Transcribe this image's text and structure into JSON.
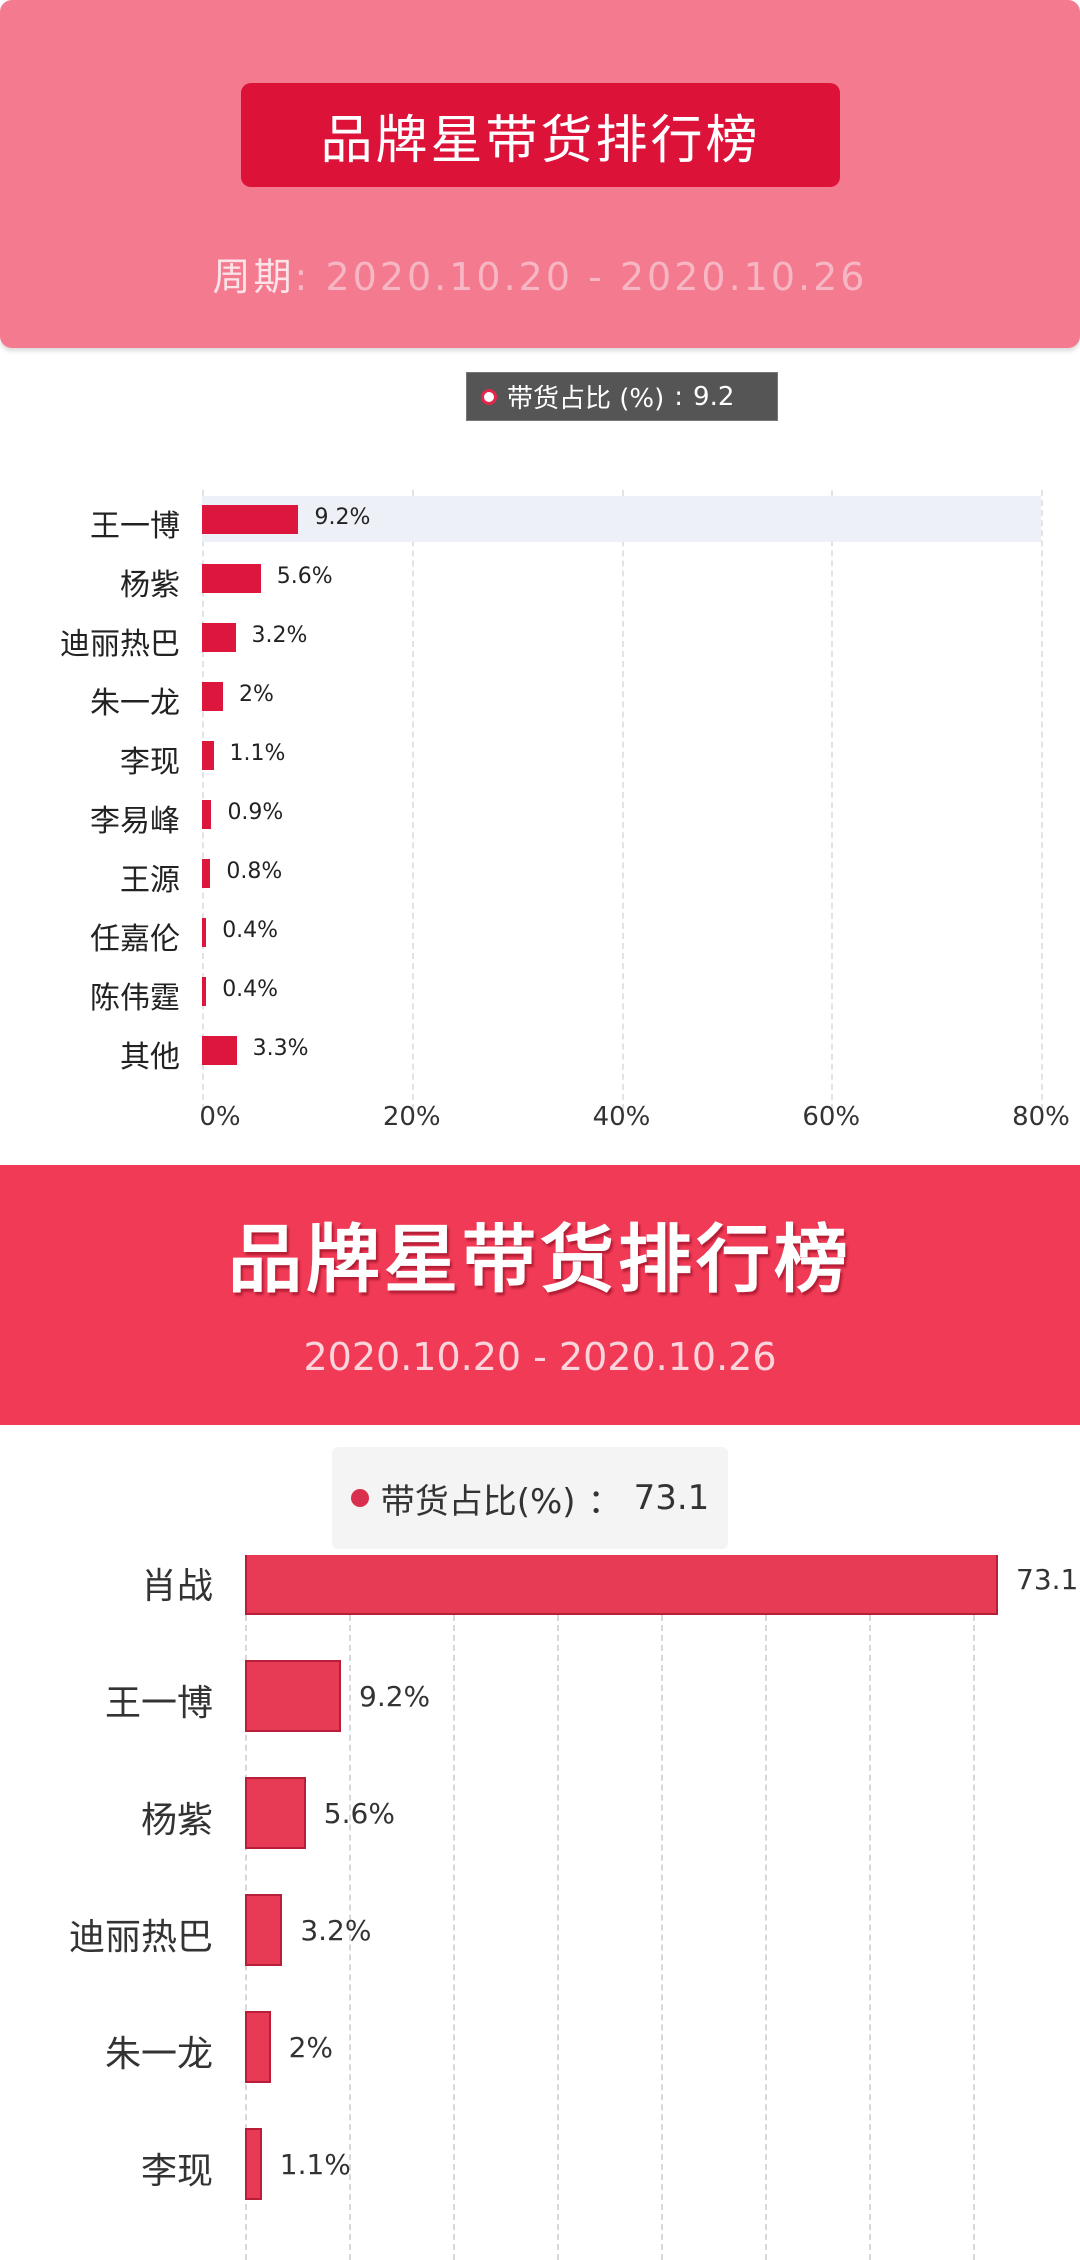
{
  "colors": {
    "header_pink": "#f47a8f",
    "title_red": "#dc1239",
    "bar": "#dc163c",
    "header2_red": "#f03a56"
  },
  "chart_data": [
    {
      "type": "bar",
      "orientation": "horizontal",
      "title": "品牌星带货排行榜",
      "period_label": "周期",
      "period_sep": ": ",
      "period_value": "2020.10.20 - 2020.10.26",
      "tooltip": {
        "series": "带货占比 (%)",
        "sep": " : ",
        "value": "9.2"
      },
      "categories": [
        "王一博",
        "杨紫",
        "迪丽热巴",
        "朱一龙",
        "李现",
        "李易峰",
        "王源",
        "任嘉伦",
        "陈伟霆",
        "其他"
      ],
      "values": [
        9.2,
        5.6,
        3.2,
        2,
        1.1,
        0.9,
        0.8,
        0.4,
        0.4,
        3.3
      ],
      "value_labels": [
        "9.2%",
        "5.6%",
        "3.2%",
        "2%",
        "1.1%",
        "0.9%",
        "0.8%",
        "0.4%",
        "0.4%",
        "3.3%"
      ],
      "xlim": [
        0,
        80
      ],
      "xticks": [
        "0%",
        "20%",
        "40%",
        "60%",
        "80%"
      ],
      "highlighted": "王一博",
      "grid": true
    },
    {
      "type": "bar",
      "orientation": "horizontal",
      "title": "品牌星带货排行榜",
      "period_value": "2020.10.20 - 2020.10.26",
      "tooltip": {
        "series": "带货占比(%)",
        "sep": "：",
        "value": "73.1"
      },
      "categories": [
        "肖战",
        "王一博",
        "杨紫",
        "迪丽热巴",
        "朱一龙",
        "李现"
      ],
      "values": [
        73.1,
        9.2,
        5.6,
        3.2,
        2,
        1.1
      ],
      "value_labels": [
        "73.1%",
        "9.2%",
        "5.6%",
        "3.2%",
        "2%",
        "1.1%"
      ],
      "grid": true
    }
  ]
}
